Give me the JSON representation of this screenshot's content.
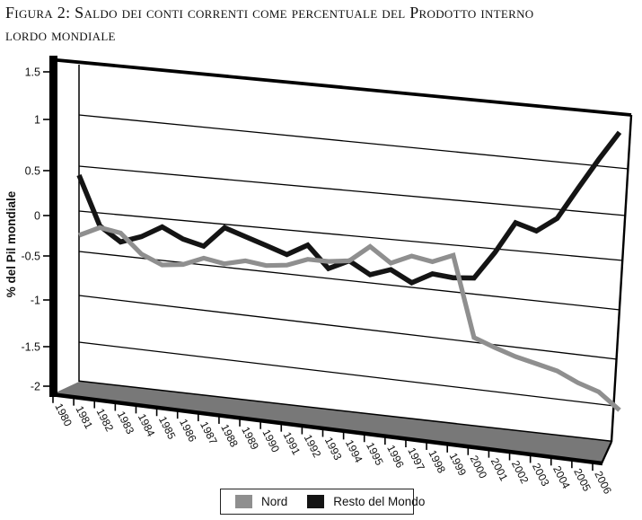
{
  "figure": {
    "title_line1": "Figura 2: Saldo dei conti correnti come percentuale del Prodotto interno",
    "title_line2": "lordo mondiale"
  },
  "chart_data": {
    "type": "line",
    "style": "3d-perspective",
    "title": "Saldo dei conti correnti come percentuale del Prodotto interno lordo mondiale",
    "xlabel": "",
    "ylabel": "% del Pil mondiale",
    "ylim": [
      -2,
      1.5
    ],
    "ytick_labels": [
      "1.5",
      "1",
      "0.5",
      "0",
      "-0.5",
      "-1",
      "-1.5",
      "-2"
    ],
    "grid": true,
    "legend_position": "bottom",
    "floor_color": "#787878",
    "categories": [
      "1980",
      "1981",
      "1982",
      "1983",
      "1984",
      "1985",
      "1986",
      "1987",
      "1988",
      "1989",
      "1990",
      "1991",
      "1992",
      "1993",
      "1994",
      "1995",
      "1996",
      "1997",
      "1998",
      "1999",
      "2000",
      "2001",
      "2002",
      "2003",
      "2004",
      "2005",
      "2006"
    ],
    "series": [
      {
        "name": "Nord",
        "color": "#8f8f8f",
        "values": [
          -0.3,
          -0.18,
          -0.22,
          -0.45,
          -0.55,
          -0.52,
          -0.42,
          -0.46,
          -0.4,
          -0.43,
          -0.4,
          -0.31,
          -0.31,
          -0.28,
          -0.1,
          -0.26,
          -0.16,
          -0.2,
          -0.11,
          -0.95,
          -1.03,
          -1.1,
          -1.15,
          -1.2,
          -1.3,
          -1.37,
          -1.55
        ]
      },
      {
        "name": "Resto del Mondo",
        "color": "#141414",
        "values": [
          0.4,
          -0.16,
          -0.33,
          -0.24,
          -0.1,
          -0.22,
          -0.28,
          -0.04,
          -0.12,
          -0.2,
          -0.28,
          -0.15,
          -0.39,
          -0.28,
          -0.41,
          -0.33,
          -0.45,
          -0.33,
          -0.35,
          -0.33,
          -0.04,
          0.31,
          0.24,
          0.4,
          0.74,
          1.06,
          1.33
        ]
      }
    ]
  }
}
